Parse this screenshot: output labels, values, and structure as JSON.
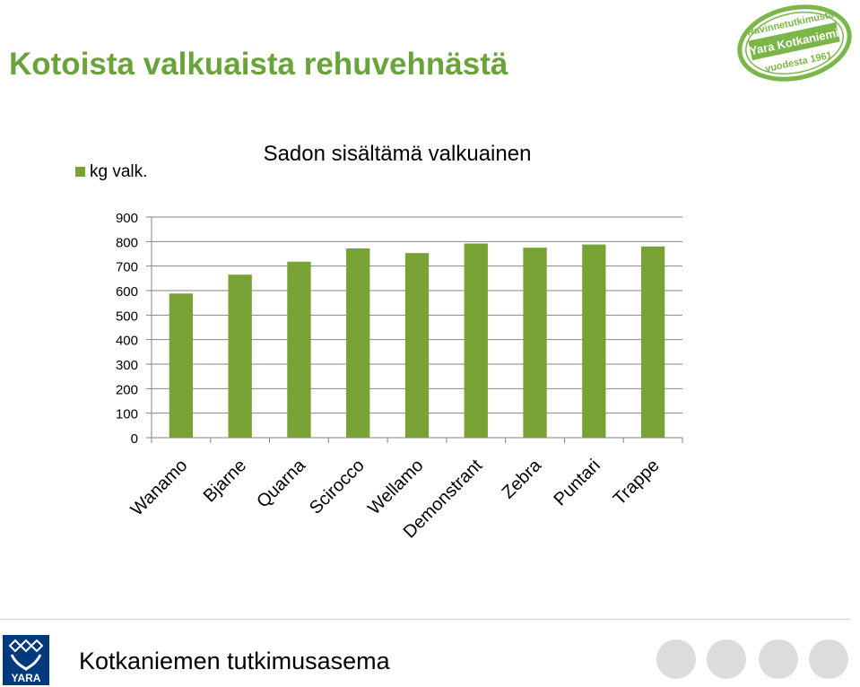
{
  "slide": {
    "title": "Kotoista valkuaista rehuvehnästä",
    "footer": "Kotkaniemen tutkimusasema"
  },
  "stamp": {
    "line1": "Ravinnetutkimusta",
    "line2": "Yara Kotkaniemi",
    "line3": "vuodesta 1961"
  },
  "logo": {
    "text": "YARA"
  },
  "colors": {
    "accent": "#6aa33a",
    "bar": "#78a234",
    "grid": "#868686",
    "dots": "#dcdcdc",
    "logo": "#003a7d"
  },
  "chart_data": {
    "type": "bar",
    "title": "Sadon sisältämä valkuainen",
    "categories": [
      "Wanamo",
      "Bjarne",
      "Quarna",
      "Scirocco",
      "Wellamo",
      "Demonstrant",
      "Zebra",
      "Puntari",
      "Trappe"
    ],
    "series": [
      {
        "name": "kg valk.",
        "values": [
          588,
          665,
          718,
          772,
          753,
          792,
          775,
          788,
          780
        ]
      }
    ],
    "ylim": [
      0,
      900
    ],
    "yticks": [
      "0",
      "100",
      "200",
      "300",
      "400",
      "500",
      "600",
      "700",
      "800",
      "900"
    ],
    "legend": "top-left",
    "grid": true
  }
}
